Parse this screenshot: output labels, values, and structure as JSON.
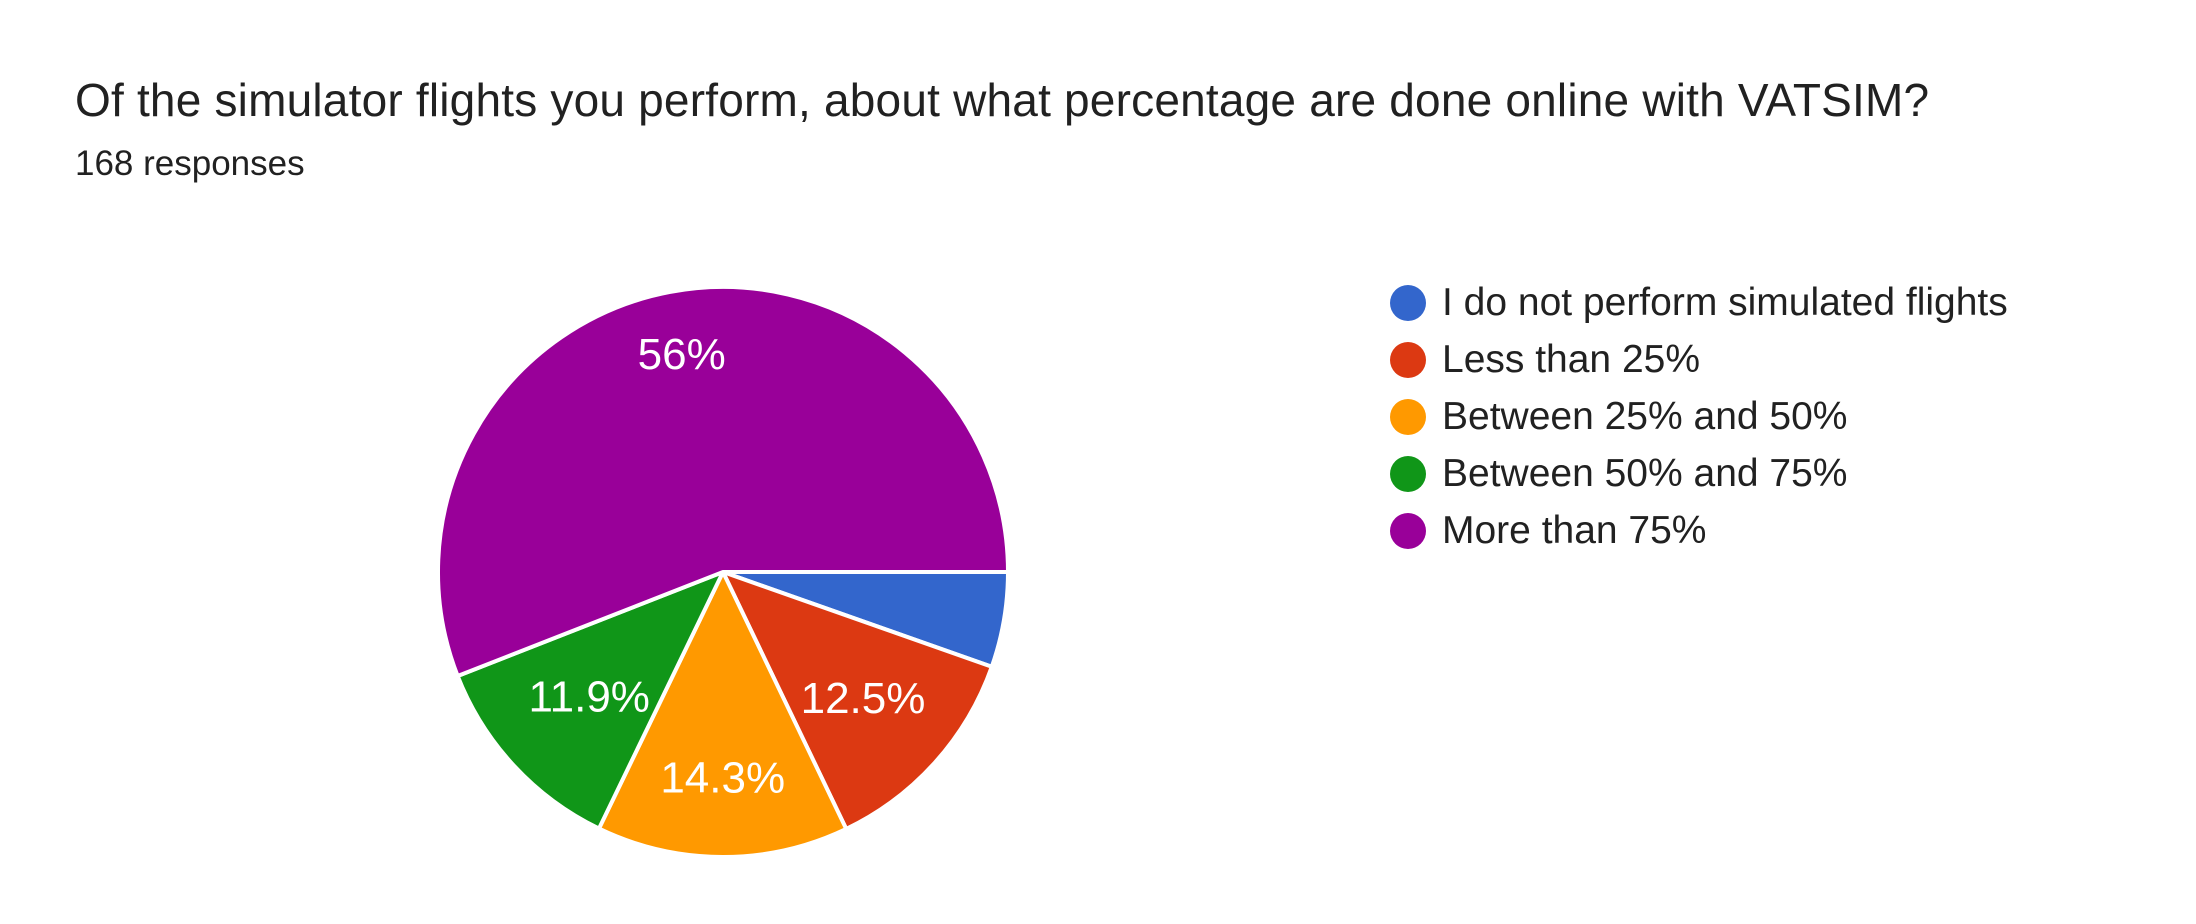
{
  "header": {
    "title": "Of the simulator flights you perform, about what percentage are done online with VATSIM?",
    "responses": "168 responses"
  },
  "chart_data": {
    "type": "pie",
    "title": "Of the simulator flights you perform, about what percentage are done online with VATSIM?",
    "subtitle": "168 responses",
    "legend_position": "right",
    "start_angle": "3-oclock-clockwise",
    "background": "#ffffff",
    "slice_label_color": "#ffffff",
    "slices": [
      {
        "label": "I do not perform simulated flights",
        "pct": 5.4,
        "display_label": "",
        "color": "#3366CC"
      },
      {
        "label": "Less than 25%",
        "pct": 12.5,
        "display_label": "12.5%",
        "color": "#DC3912"
      },
      {
        "label": "Between 25% and 50%",
        "pct": 14.3,
        "display_label": "14.3%",
        "color": "#FF9900"
      },
      {
        "label": "Between 50% and 75%",
        "pct": 11.9,
        "display_label": "11.9%",
        "color": "#109618"
      },
      {
        "label": "More than 75%",
        "pct": 56,
        "display_label": "56%",
        "color": "#990099"
      }
    ]
  }
}
